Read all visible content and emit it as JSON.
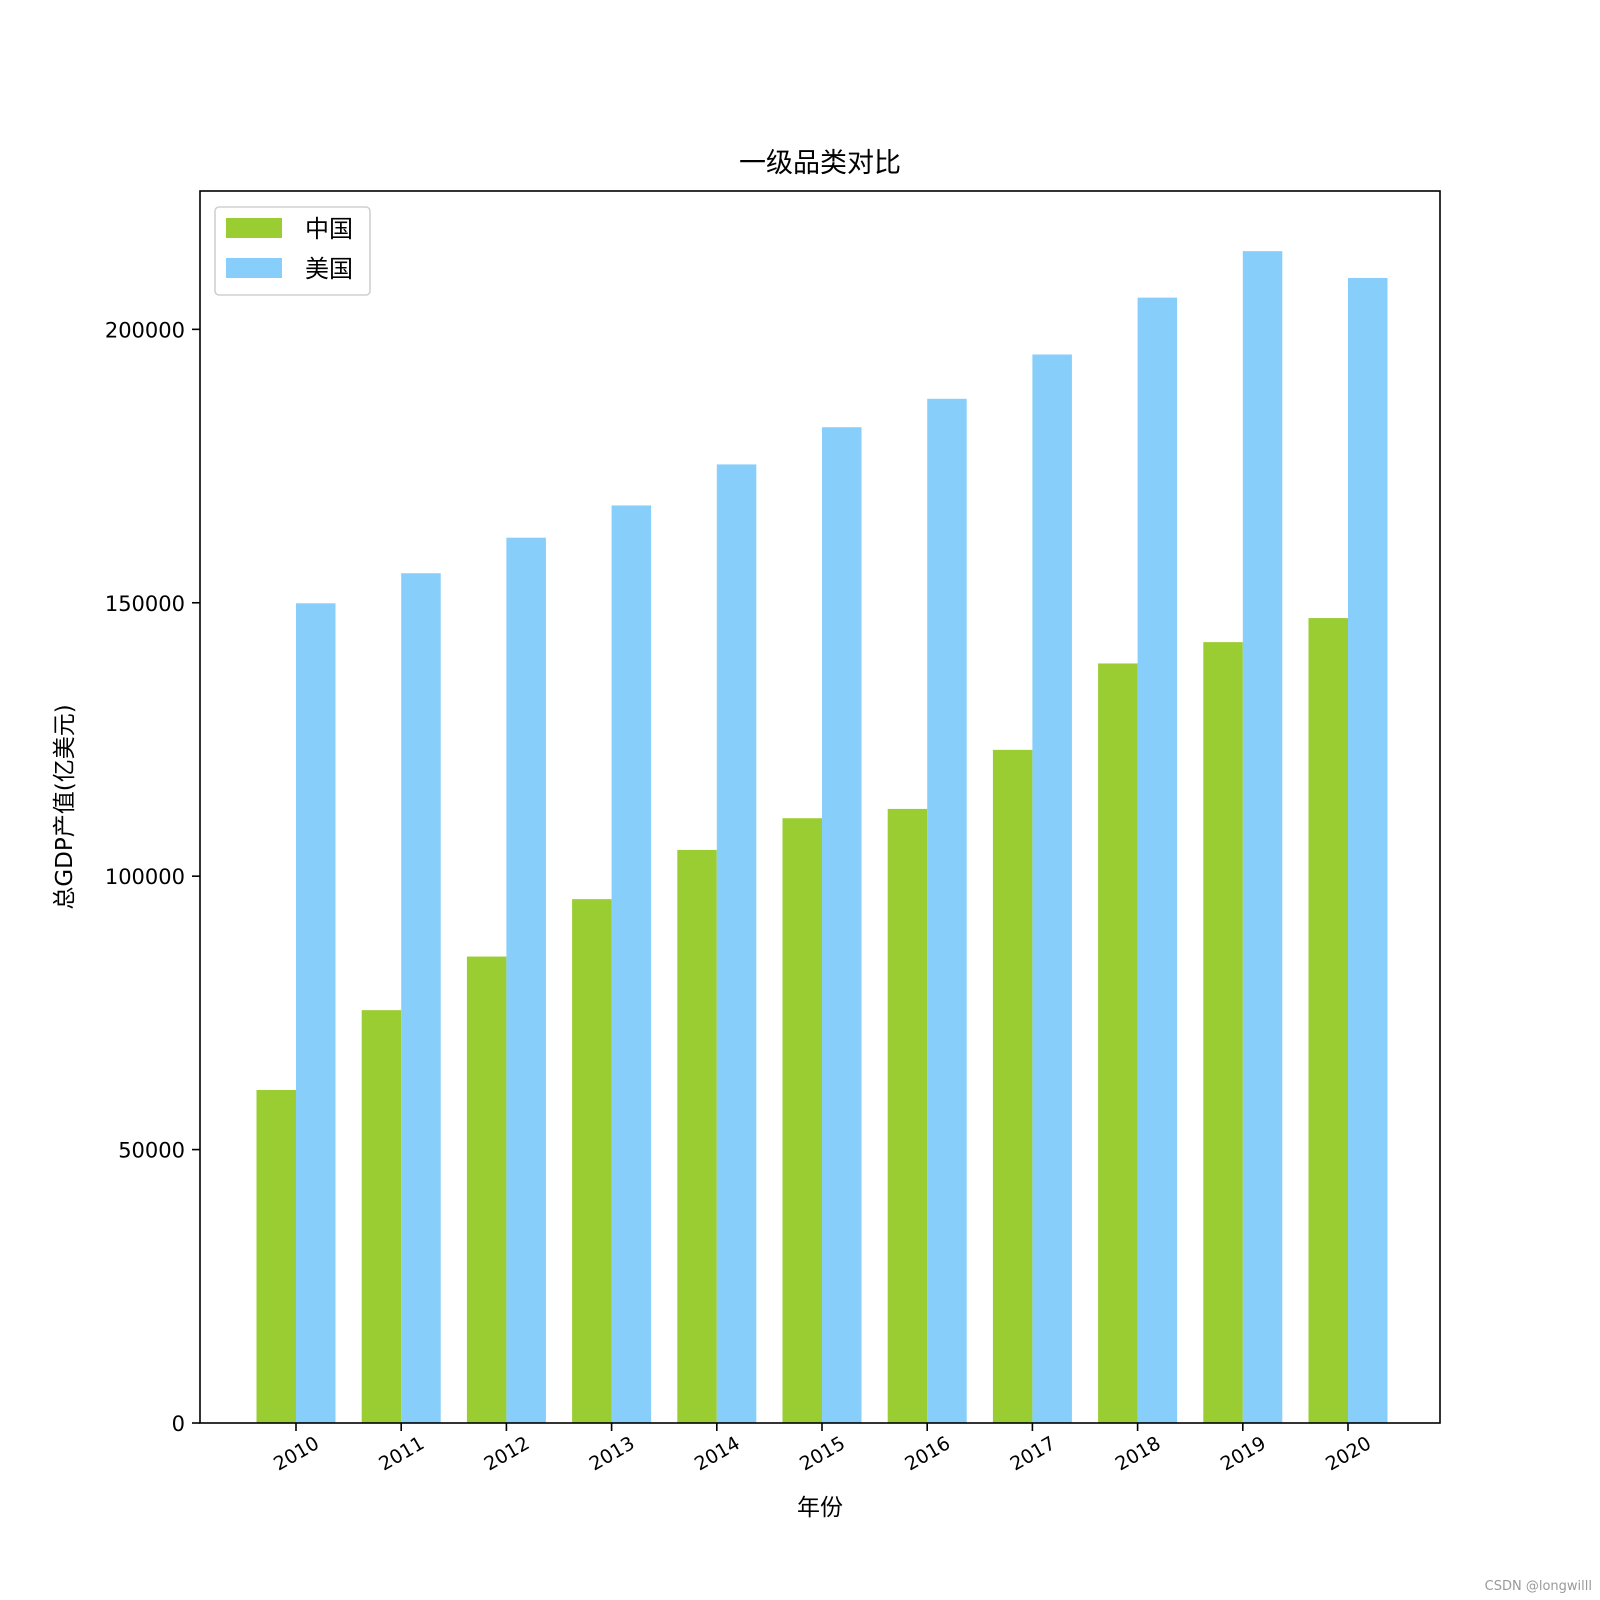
{
  "chart_data": {
    "type": "bar",
    "title": "一级品类对比",
    "xlabel": "年份",
    "ylabel": "总GDP产值(亿美元)",
    "categories": [
      "2010",
      "2011",
      "2012",
      "2013",
      "2014",
      "2015",
      "2016",
      "2017",
      "2018",
      "2019",
      "2020"
    ],
    "series": [
      {
        "name": "中国",
        "color": "#9ACD32",
        "values": [
          60900,
          75500,
          85300,
          95800,
          104800,
          110600,
          112300,
          123100,
          138900,
          142800,
          147200
        ]
      },
      {
        "name": "美国",
        "color": "#87CEFA",
        "values": [
          149900,
          155400,
          161900,
          167800,
          175300,
          182100,
          187300,
          195400,
          205800,
          214300,
          209400
        ]
      }
    ],
    "ylim": [
      0,
      225300
    ],
    "yticks": [
      0,
      50000,
      100000,
      150000,
      200000
    ],
    "ytick_labels": [
      "0",
      "50000",
      "100000",
      "150000",
      "200000"
    ],
    "xtick_rotation": "30 degrees",
    "legend": {
      "loc": "upper left"
    },
    "grid": false
  },
  "watermark": "CSDN @longwilll"
}
